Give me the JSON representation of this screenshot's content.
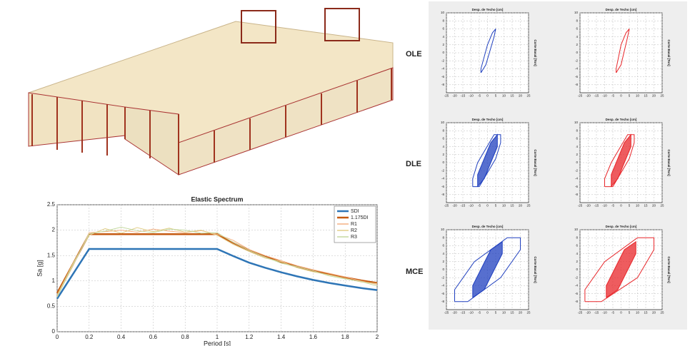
{
  "row_labels": [
    "OLE",
    "DLE",
    "MCE"
  ],
  "chart_data": [
    {
      "type": "line",
      "title": "Elastic Spectrum",
      "xlabel": "Period [s]",
      "ylabel": "Sa [g]",
      "x": [
        0,
        0.1,
        0.2,
        0.3,
        0.4,
        0.5,
        0.6,
        0.7,
        0.8,
        0.9,
        1,
        1.1,
        1.2,
        1.3,
        1.4,
        1.5,
        1.6,
        1.7,
        1.8,
        1.9,
        2
      ],
      "xlim": [
        0,
        2
      ],
      "xticks": [
        0,
        0.2,
        0.4,
        0.6,
        0.8,
        1,
        1.2,
        1.4,
        1.6,
        1.8,
        2
      ],
      "ylim": [
        0,
        2.5
      ],
      "yticks": [
        0,
        0.5,
        1,
        1.5,
        2,
        2.5
      ],
      "grid": true,
      "legend": "top-right",
      "series": [
        {
          "name": "SDI",
          "color": "#2e75b6",
          "width": 2.5,
          "values": [
            0.65,
            1.14,
            1.63,
            1.63,
            1.63,
            1.63,
            1.63,
            1.63,
            1.63,
            1.63,
            1.63,
            1.49,
            1.36,
            1.26,
            1.17,
            1.09,
            1.02,
            0.96,
            0.91,
            0.86,
            0.82
          ]
        },
        {
          "name": "1.175DI",
          "color": "#c55a11",
          "width": 2.5,
          "values": [
            0.76,
            1.34,
            1.92,
            1.92,
            1.92,
            1.92,
            1.92,
            1.92,
            1.92,
            1.92,
            1.92,
            1.75,
            1.6,
            1.48,
            1.37,
            1.28,
            1.2,
            1.13,
            1.07,
            1.01,
            0.96
          ]
        },
        {
          "name": "R1",
          "color": "#f4b183",
          "width": 1,
          "values": [
            0.7,
            1.3,
            1.95,
            1.97,
            2.0,
            1.96,
            2.02,
            1.98,
            1.95,
            1.99,
            1.92,
            1.8,
            1.62,
            1.5,
            1.4,
            1.3,
            1.22,
            1.15,
            1.08,
            1.0,
            0.93
          ]
        },
        {
          "name": "R2",
          "color": "#e2cf8a",
          "width": 1,
          "values": [
            0.72,
            1.35,
            1.9,
            2.03,
            1.94,
            2.05,
            1.97,
            2.04,
            1.96,
            2.0,
            1.9,
            1.72,
            1.58,
            1.45,
            1.38,
            1.26,
            1.18,
            1.12,
            1.05,
            0.98,
            0.95
          ]
        },
        {
          "name": "R3",
          "color": "#c5d9a0",
          "width": 1,
          "values": [
            0.68,
            1.32,
            1.93,
            1.98,
            2.06,
            1.99,
            1.95,
            2.02,
            2.0,
            1.94,
            1.95,
            1.76,
            1.6,
            1.47,
            1.35,
            1.28,
            1.2,
            1.1,
            1.04,
            0.99,
            0.9
          ]
        }
      ]
    },
    {
      "type": "hysteresis",
      "title": "Desp. de Techo [cm]",
      "ylabel": "Corte Basal [Ton]",
      "xlim": [
        -25,
        25
      ],
      "xticks": [
        -25,
        -20,
        -15,
        -10,
        -5,
        0,
        5,
        10,
        15,
        20,
        25
      ],
      "ylim": [
        -10,
        10
      ],
      "yticks": [
        -8,
        -6,
        -4,
        -2,
        0,
        2,
        4,
        6,
        8,
        10
      ],
      "grid": true,
      "series": [
        {
          "color": "#1f3fbf",
          "x": [
            -4,
            -1,
            4,
            5,
            3,
            0,
            -4,
            -4
          ],
          "values": [
            -5,
            -3,
            4,
            6,
            5,
            2,
            -4,
            -5
          ]
        }
      ]
    },
    {
      "type": "hysteresis",
      "title": "Desp. de Techo [cm]",
      "ylabel": "Corte Basal [Ton]",
      "xlim": [
        -25,
        25
      ],
      "xticks": [
        -25,
        -20,
        -15,
        -10,
        -5,
        0,
        5,
        10,
        15,
        20,
        25
      ],
      "ylim": [
        -10,
        10
      ],
      "yticks": [
        -8,
        -6,
        -4,
        -2,
        0,
        2,
        4,
        6,
        8,
        10
      ],
      "grid": true,
      "series": [
        {
          "color": "#e8262a",
          "x": [
            -3,
            0,
            4,
            5,
            3,
            0,
            -3,
            -3
          ],
          "values": [
            -5,
            -3,
            4,
            6,
            5,
            2,
            -4,
            -5
          ]
        }
      ]
    },
    {
      "type": "hysteresis",
      "title": "Desp. de Techo [cm]",
      "ylabel": "Corte Basal [Ton]",
      "xlim": [
        -25,
        25
      ],
      "xticks": [
        -25,
        -20,
        -15,
        -10,
        -5,
        0,
        5,
        10,
        15,
        20,
        25
      ],
      "ylim": [
        -10,
        10
      ],
      "yticks": [
        -8,
        -6,
        -4,
        -2,
        0,
        2,
        4,
        6,
        8,
        10
      ],
      "grid": true,
      "series": [
        {
          "color": "#1f3fbf",
          "x": [
            -9,
            -5,
            5,
            8,
            8,
            4,
            -6,
            -9,
            -9
          ],
          "values": [
            -6,
            -6,
            1,
            5,
            7,
            7,
            0,
            -4,
            -6
          ]
        },
        {
          "color": "#1f3fbf",
          "x": [
            -6,
            -2,
            6,
            6,
            2,
            -6,
            -6
          ],
          "values": [
            -6,
            -4,
            4,
            7,
            5,
            -3,
            -6
          ]
        }
      ]
    },
    {
      "type": "hysteresis",
      "title": "Desp. de Techo [cm]",
      "ylabel": "Corte Basal [Ton]",
      "xlim": [
        -25,
        25
      ],
      "xticks": [
        -25,
        -20,
        -15,
        -10,
        -5,
        0,
        5,
        10,
        15,
        20,
        25
      ],
      "ylim": [
        -10,
        10
      ],
      "yticks": [
        -8,
        -6,
        -4,
        -2,
        0,
        2,
        4,
        6,
        8,
        10
      ],
      "grid": true,
      "series": [
        {
          "color": "#e8262a",
          "x": [
            -10,
            -5,
            5,
            8,
            8,
            4,
            -6,
            -10,
            -10
          ],
          "values": [
            -6,
            -6,
            1,
            5,
            7,
            7,
            0,
            -4,
            -6
          ]
        },
        {
          "color": "#e8262a",
          "x": [
            -6,
            -2,
            6,
            6,
            2,
            -6,
            -6
          ],
          "values": [
            -6,
            -4,
            4,
            7,
            5,
            -3,
            -6
          ]
        }
      ]
    },
    {
      "type": "hysteresis",
      "title": "Desp. de Techo [cm]",
      "ylabel": "Corte Basal [Ton]",
      "xlim": [
        -25,
        25
      ],
      "xticks": [
        -25,
        -20,
        -15,
        -10,
        -5,
        0,
        5,
        10,
        15,
        20,
        25
      ],
      "ylim": [
        -10,
        10
      ],
      "yticks": [
        -8,
        -6,
        -4,
        -2,
        0,
        2,
        4,
        6,
        8,
        10
      ],
      "grid": true,
      "series": [
        {
          "color": "#1f3fbf",
          "x": [
            -20,
            -12,
            8,
            20,
            20,
            12,
            -8,
            -20,
            -20
          ],
          "values": [
            -8,
            -8,
            -2,
            5,
            8,
            8,
            2,
            -5,
            -8
          ]
        },
        {
          "color": "#1f3fbf",
          "x": [
            -9,
            -2,
            9,
            9,
            2,
            -9,
            -9
          ],
          "values": [
            -7,
            -5,
            4,
            7,
            5,
            -4,
            -7
          ]
        }
      ]
    },
    {
      "type": "hysteresis",
      "title": "Desp. de Techo [cm]",
      "ylabel": "Corte Basal [Ton]",
      "xlim": [
        -25,
        25
      ],
      "xticks": [
        -25,
        -20,
        -15,
        -10,
        -5,
        0,
        5,
        10,
        15,
        20,
        25
      ],
      "ylim": [
        -10,
        10
      ],
      "yticks": [
        -8,
        -6,
        -4,
        -2,
        0,
        2,
        4,
        6,
        8,
        10
      ],
      "grid": true,
      "series": [
        {
          "color": "#e8262a",
          "x": [
            -22,
            -12,
            10,
            20,
            20,
            10,
            -10,
            -22,
            -22
          ],
          "values": [
            -8,
            -8,
            -2,
            5,
            8,
            8,
            2,
            -5,
            -8
          ]
        },
        {
          "color": "#e8262a",
          "x": [
            -9,
            -2,
            9,
            9,
            2,
            -9,
            -9
          ],
          "values": [
            -7,
            -5,
            4,
            7,
            5,
            -4,
            -7
          ]
        }
      ]
    }
  ]
}
